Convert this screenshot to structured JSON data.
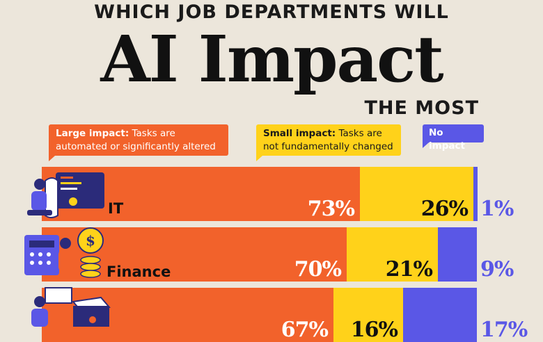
{
  "title": {
    "top": "WHICH JOB DEPARTMENTS WILL",
    "main": "AI Impact",
    "bottom": "THE MOST"
  },
  "legend": {
    "large": {
      "bold": "Large impact:",
      "text": " Tasks are automated or significantly altered",
      "color": "#f2622b"
    },
    "small": {
      "bold": "Small impact:",
      "text": " Tasks are not fundamentally changed",
      "color": "#ffd21a"
    },
    "none": {
      "bold": "No impact",
      "color": "#5a57e6"
    }
  },
  "chart_data": {
    "type": "bar",
    "orientation": "horizontal-stacked-100",
    "categories": [
      "IT",
      "Finance",
      ""
    ],
    "series": [
      {
        "name": "Large impact",
        "values": [
          73,
          70,
          67
        ]
      },
      {
        "name": "Small impact",
        "values": [
          26,
          21,
          16
        ]
      },
      {
        "name": "No impact",
        "values": [
          1,
          9,
          17
        ]
      }
    ],
    "labels": [
      [
        "73%",
        "26%",
        "1%"
      ],
      [
        "70%",
        "21%",
        "9%"
      ],
      [
        "67%",
        "16%",
        "17%"
      ]
    ],
    "colors": {
      "large": "#f2622b",
      "small": "#ffd21a",
      "none": "#5a57e6"
    }
  },
  "icons": [
    "developer-illustration",
    "finance-illustration",
    "operations-illustration"
  ]
}
